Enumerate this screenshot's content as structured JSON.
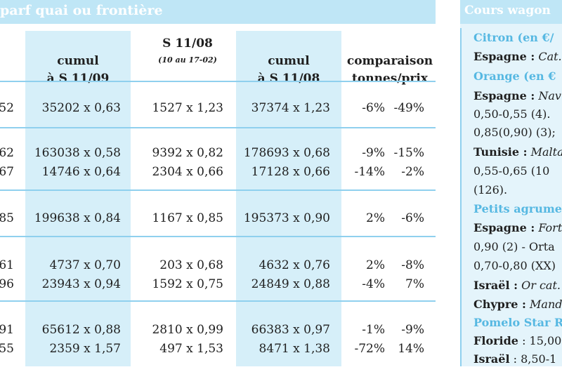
{
  "left_panel": {
    "title": "parf quai ou frontière",
    "headers": [
      {
        "main": ")",
        "sub": ""
      },
      {
        "main": "cumul\nà S 11/09",
        "sub": ""
      },
      {
        "main": "S 11/08",
        "sub": "(10 au 17-02)"
      },
      {
        "main": "cumul\nà S 11/08",
        "sub": ""
      },
      {
        "main": "comparaison\ntonnes/prix",
        "sub": ""
      }
    ],
    "rows": [
      {
        "c0": "52",
        "c1": "35202 x 0,63",
        "c2": "1527 x 1,23",
        "c3": "37374 x 1,23",
        "c4a": "-6%",
        "c4b": "-49%"
      },
      {
        "c0": "62",
        "c1": "163038 x 0,58",
        "c2": "9392 x 0,82",
        "c3": "178693 x 0,68",
        "c4a": "-9%",
        "c4b": "-15%"
      },
      {
        "c0": "67",
        "c1": "14746 x 0,64",
        "c2": "2304 x 0,66",
        "c3": "17128 x 0,66",
        "c4a": "-14%",
        "c4b": "-2%"
      },
      {
        "c0": "85",
        "c1": "199638 x 0,84",
        "c2": "1167 x 0,85",
        "c3": "195373 x 0,90",
        "c4a": "2%",
        "c4b": "-6%"
      },
      {
        "c0": "61",
        "c1": "4737 x 0,70",
        "c2": "203 x 0,68",
        "c3": "4632 x 0,76",
        "c4a": "2%",
        "c4b": "-8%"
      },
      {
        "c0": "96",
        "c1": "23943 x 0,94",
        "c2": "1592 x 0,75",
        "c3": "24849 x 0,88",
        "c4a": "-4%",
        "c4b": "7%"
      },
      {
        "c0": "91",
        "c1": "65612 x 0,88",
        "c2": "2810 x 0,99",
        "c3": "66383 x 0,97",
        "c4a": "-1%",
        "c4b": "-9%"
      },
      {
        "c0": "55",
        "c1": "2359 x 1,57",
        "c2": "497 x 1,53",
        "c3": "8471 x 1,38",
        "c4a": "-72%",
        "c4b": "14%"
      }
    ]
  },
  "right_panel": {
    "title": "Cours wagon",
    "lines": [
      {
        "style": "blue",
        "text": "Citron (en €/"
      },
      {
        "bold": "Espagne :",
        "italic": " Cat."
      },
      {
        "style": "blue",
        "text": "Orange (en €"
      },
      {
        "bold": "Espagne :",
        "italic": " Nav"
      },
      {
        "text": "0,50-0,55 (4)."
      },
      {
        "text": "0,85(0,90) (3);"
      },
      {
        "bold": "Tunisie :",
        "italic": " Malta"
      },
      {
        "text": "0,55-0,65 (10"
      },
      {
        "text": "(126)."
      },
      {
        "style": "blue",
        "text": "Petits agrume"
      },
      {
        "bold": "Espagne :",
        "italic": " Fort"
      },
      {
        "text": "0,90 (2) - Orta"
      },
      {
        "text": "0,70-0,80 (XX)"
      },
      {
        "bold": "Israël :",
        "italic": " Or cat."
      },
      {
        "bold": "Chypre :",
        "italic": " Mand"
      },
      {
        "style": "blue",
        "text": "Pomelo Star R"
      },
      {
        "bold": "Floride",
        "text": " : 15,00"
      },
      {
        "bold": "Israël",
        "text": " : 8,50-1"
      }
    ]
  }
}
